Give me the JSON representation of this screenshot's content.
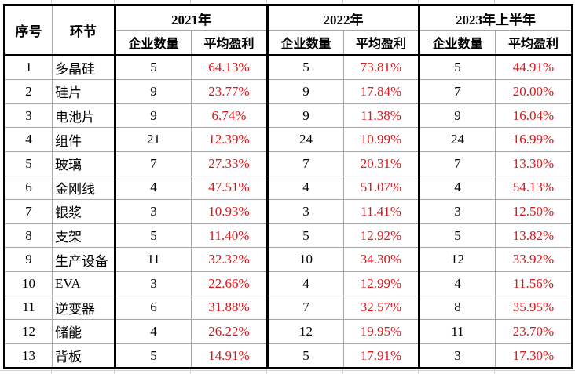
{
  "table": {
    "headers": {
      "index": "序号",
      "segment": "环节",
      "years": [
        "2021年",
        "2022年",
        "2023年上半年"
      ],
      "sub": {
        "count": "企业数量",
        "profit": "平均盈利"
      }
    },
    "rows": [
      {
        "no": "1",
        "segment": "多晶硅",
        "y2021": {
          "count": "5",
          "profit": "64.13%"
        },
        "y2022": {
          "count": "5",
          "profit": "73.81%"
        },
        "y2023h1": {
          "count": "5",
          "profit": "44.91%"
        }
      },
      {
        "no": "2",
        "segment": "硅片",
        "y2021": {
          "count": "9",
          "profit": "23.77%"
        },
        "y2022": {
          "count": "9",
          "profit": "17.84%"
        },
        "y2023h1": {
          "count": "7",
          "profit": "20.00%"
        }
      },
      {
        "no": "3",
        "segment": "电池片",
        "y2021": {
          "count": "9",
          "profit": "6.74%"
        },
        "y2022": {
          "count": "9",
          "profit": "11.38%"
        },
        "y2023h1": {
          "count": "9",
          "profit": "16.04%"
        }
      },
      {
        "no": "4",
        "segment": "组件",
        "y2021": {
          "count": "21",
          "profit": "12.39%"
        },
        "y2022": {
          "count": "24",
          "profit": "10.99%"
        },
        "y2023h1": {
          "count": "24",
          "profit": "16.99%"
        }
      },
      {
        "no": "5",
        "segment": "玻璃",
        "y2021": {
          "count": "7",
          "profit": "27.33%"
        },
        "y2022": {
          "count": "7",
          "profit": "20.31%"
        },
        "y2023h1": {
          "count": "7",
          "profit": "13.30%"
        }
      },
      {
        "no": "6",
        "segment": "金刚线",
        "y2021": {
          "count": "4",
          "profit": "47.51%"
        },
        "y2022": {
          "count": "4",
          "profit": "51.07%"
        },
        "y2023h1": {
          "count": "4",
          "profit": "54.13%"
        }
      },
      {
        "no": "7",
        "segment": "银浆",
        "y2021": {
          "count": "3",
          "profit": "10.93%"
        },
        "y2022": {
          "count": "3",
          "profit": "11.41%"
        },
        "y2023h1": {
          "count": "3",
          "profit": "12.50%"
        }
      },
      {
        "no": "8",
        "segment": "支架",
        "y2021": {
          "count": "5",
          "profit": "11.40%"
        },
        "y2022": {
          "count": "5",
          "profit": "12.92%"
        },
        "y2023h1": {
          "count": "5",
          "profit": "13.82%"
        }
      },
      {
        "no": "9",
        "segment": "生产设备",
        "y2021": {
          "count": "11",
          "profit": "32.32%"
        },
        "y2022": {
          "count": "10",
          "profit": "34.30%"
        },
        "y2023h1": {
          "count": "12",
          "profit": "33.92%"
        }
      },
      {
        "no": "10",
        "segment": "EVA",
        "y2021": {
          "count": "3",
          "profit": "22.66%"
        },
        "y2022": {
          "count": "4",
          "profit": "12.99%"
        },
        "y2023h1": {
          "count": "4",
          "profit": "11.56%"
        }
      },
      {
        "no": "11",
        "segment": "逆变器",
        "y2021": {
          "count": "6",
          "profit": "31.88%"
        },
        "y2022": {
          "count": "7",
          "profit": "32.57%"
        },
        "y2023h1": {
          "count": "8",
          "profit": "35.95%"
        }
      },
      {
        "no": "12",
        "segment": "储能",
        "y2021": {
          "count": "4",
          "profit": "26.22%"
        },
        "y2022": {
          "count": "12",
          "profit": "19.95%"
        },
        "y2023h1": {
          "count": "11",
          "profit": "23.70%"
        }
      },
      {
        "no": "13",
        "segment": "背板",
        "y2021": {
          "count": "5",
          "profit": "14.91%"
        },
        "y2022": {
          "count": "5",
          "profit": "17.91%"
        },
        "y2023h1": {
          "count": "3",
          "profit": "17.30%"
        }
      }
    ]
  },
  "colors": {
    "profit_text": "#d9181c",
    "border_thick": "#000000",
    "border_thin": "#a6a6a6"
  }
}
